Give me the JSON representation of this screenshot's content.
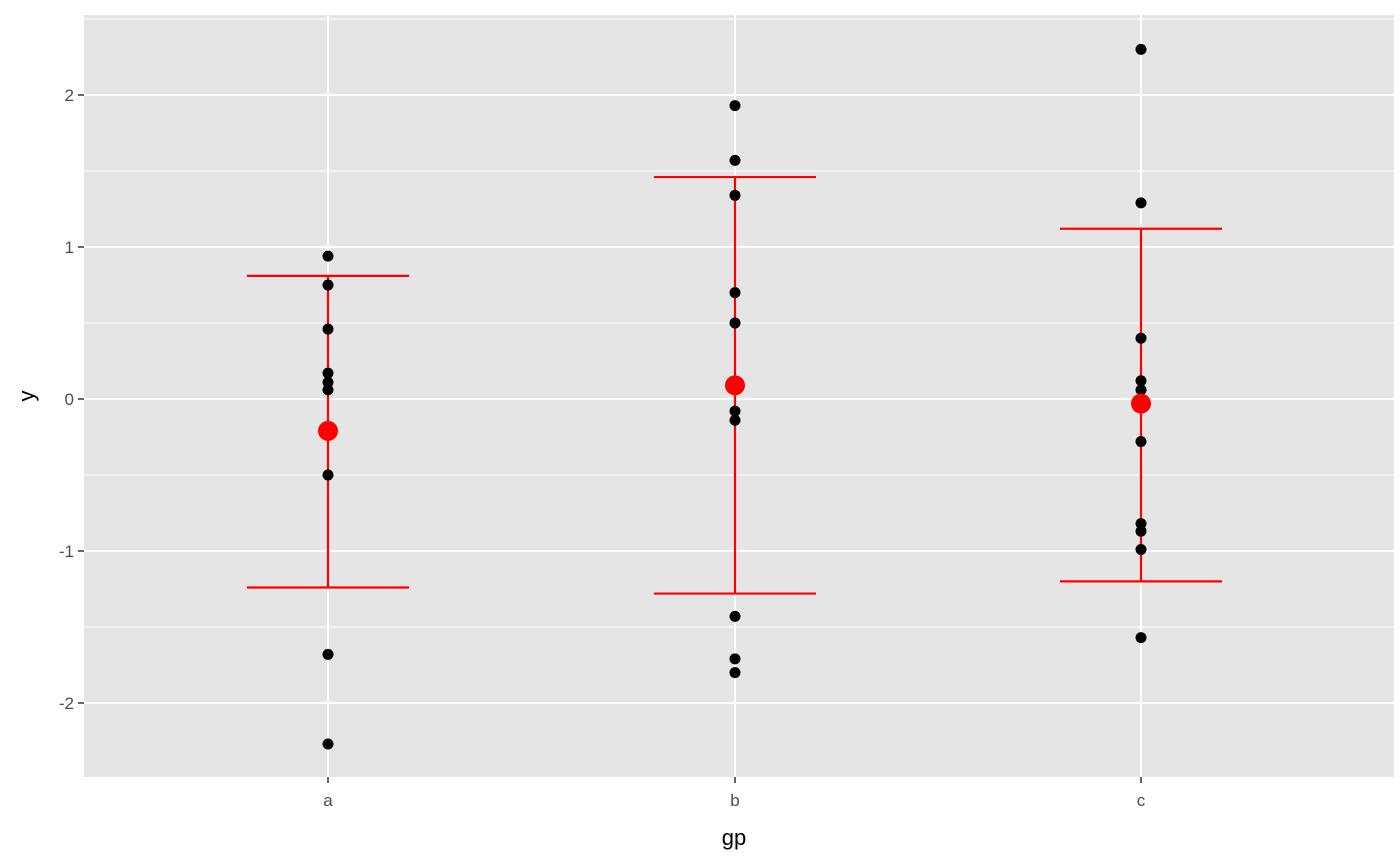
{
  "chart_data": {
    "type": "scatter",
    "title": "",
    "xlabel": "gp",
    "ylabel": "y",
    "categories": [
      "a",
      "b",
      "c"
    ],
    "ylim": [
      -2.5,
      2.5
    ],
    "yticks": [
      -2,
      -1,
      0,
      1,
      2
    ],
    "ytick_labels": [
      "-2",
      "-1",
      "0",
      "1",
      "2"
    ],
    "grid": true,
    "legend": "none",
    "points": {
      "a": [
        0.94,
        0.75,
        0.46,
        0.17,
        0.11,
        0.06,
        -0.5,
        -1.68,
        -2.27
      ],
      "b": [
        1.93,
        1.57,
        1.34,
        0.7,
        0.5,
        -0.08,
        -0.14,
        -1.43,
        -1.71,
        -1.8
      ],
      "c": [
        2.3,
        1.29,
        0.4,
        0.12,
        0.06,
        -0.28,
        -0.82,
        -0.87,
        -0.99,
        -1.57
      ]
    },
    "summary": [
      {
        "category": "a",
        "mean": -0.21,
        "lower": -1.24,
        "upper": 0.81
      },
      {
        "category": "b",
        "mean": 0.09,
        "lower": -1.28,
        "upper": 1.46
      },
      {
        "category": "c",
        "mean": -0.03,
        "lower": -1.2,
        "upper": 1.12
      }
    ],
    "colors": {
      "panel_background": "#e5e5e5",
      "grid": "#ffffff",
      "points": "#000000",
      "summary": "#ff0000",
      "tick_text": "#4d4d4d",
      "axis_title": "#000000"
    }
  }
}
